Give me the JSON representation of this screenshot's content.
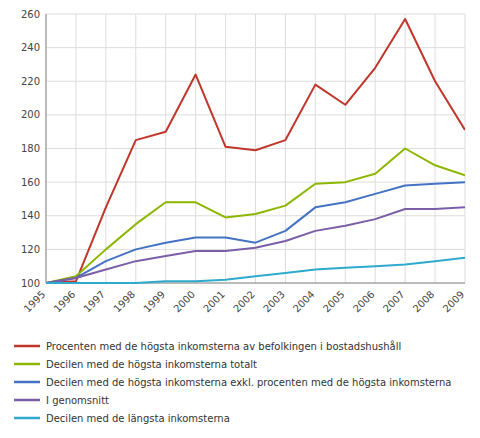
{
  "chart_data": {
    "type": "line",
    "x": [
      1995,
      1996,
      1997,
      1998,
      1999,
      2000,
      2001,
      2002,
      2003,
      2004,
      2005,
      2006,
      2007,
      2008,
      2009
    ],
    "xlim": [
      1995,
      2009
    ],
    "xticks": [
      1995,
      1996,
      1997,
      1998,
      1999,
      2000,
      2001,
      2002,
      2003,
      2004,
      2005,
      2006,
      2007,
      2008,
      2009
    ],
    "ylim": [
      100,
      260
    ],
    "yticks": [
      100,
      120,
      140,
      160,
      180,
      200,
      220,
      240,
      260
    ],
    "grid": true,
    "legend": "bottom",
    "series": [
      {
        "name": "Procenten med de högsta inkomsterna av befolkingen i bostadshushåll",
        "color": "#C0362B",
        "values": [
          100,
          101,
          145,
          185,
          190,
          224,
          181,
          179,
          185,
          218,
          206,
          228,
          257,
          220,
          191
        ]
      },
      {
        "name": "Decilen med de högsta inkomsterna totalt",
        "color": "#8DB600",
        "values": [
          100,
          104,
          120,
          135,
          148,
          148,
          139,
          141,
          146,
          159,
          160,
          165,
          180,
          170,
          164
        ]
      },
      {
        "name": "Decilen med de högsta inkomsterna exkl. procenten med de högsta inkomsterna",
        "color": "#4472C4",
        "values": [
          100,
          103,
          113,
          120,
          124,
          127,
          127,
          124,
          131,
          145,
          148,
          153,
          158,
          159,
          160
        ]
      },
      {
        "name": "I genomsnitt",
        "color": "#7B5EA7",
        "values": [
          100,
          103,
          108,
          113,
          116,
          119,
          119,
          121,
          125,
          131,
          134,
          138,
          144,
          144,
          145
        ]
      },
      {
        "name": "Decilen med de längsta inkomsterna",
        "color": "#2EAACC",
        "values": [
          100,
          100,
          100,
          100,
          101,
          101,
          102,
          104,
          106,
          108,
          109,
          110,
          111,
          113,
          115
        ]
      }
    ]
  }
}
